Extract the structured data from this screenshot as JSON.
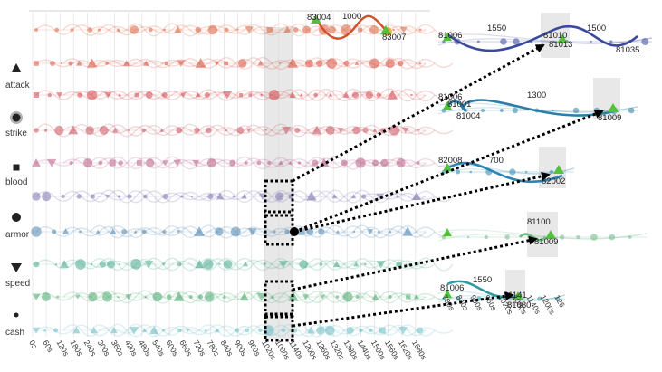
{
  "legend": [
    {
      "name": "attack",
      "shape": "triangle"
    },
    {
      "name": "strike",
      "shape": "burst"
    },
    {
      "name": "blood",
      "shape": "square"
    },
    {
      "name": "armor",
      "shape": "circle"
    },
    {
      "name": "speed",
      "shape": "triangle-down"
    },
    {
      "name": "cash",
      "shape": "dot"
    }
  ],
  "timeline_ticks": [
    "0s",
    "60s",
    "120s",
    "180s",
    "240s",
    "300s",
    "360s",
    "420s",
    "480s",
    "540s",
    "600s",
    "660s",
    "720s",
    "780s",
    "840s",
    "900s",
    "960s",
    "1020s",
    "1080s",
    "1140s",
    "1200s",
    "1260s",
    "1320s",
    "1380s",
    "1440s",
    "1500s",
    "1560s",
    "1620s",
    "1680s"
  ],
  "top_row_labels": {
    "left": "83004",
    "middle": "1000",
    "right": "83007"
  },
  "detail_panels": [
    {
      "labels": [
        "81006",
        "1550",
        "81010",
        "1500",
        "81013",
        "81035"
      ]
    },
    {
      "labels": [
        "81006",
        "81001",
        "81004",
        "1300",
        "81009"
      ]
    },
    {
      "labels": [
        "82008",
        "700",
        "82002"
      ]
    },
    {
      "labels": [
        "81100",
        "81009"
      ]
    },
    {
      "labels": [
        "81006",
        "1550",
        "81141",
        "81080"
      ],
      "ticks": [
        "780s",
        "840s",
        "900s",
        "960s",
        "1020s",
        "1080s",
        "1140s",
        "1200s",
        "126"
      ]
    }
  ],
  "colors": {
    "rows": [
      "#d9643f",
      "#d8503f",
      "#d2464a",
      "#c8535f",
      "#b85c86",
      "#7b72ad",
      "#4f86b2",
      "#49a98c",
      "#4aa86d",
      "#6cbcc4"
    ],
    "panels": [
      "#3b4a9c",
      "#2c7fa4",
      "#2a86b0",
      "#6dbb86",
      "#2f9aa4"
    ],
    "marker_green": "#52c23a",
    "highlight": "#d6d6d6"
  }
}
